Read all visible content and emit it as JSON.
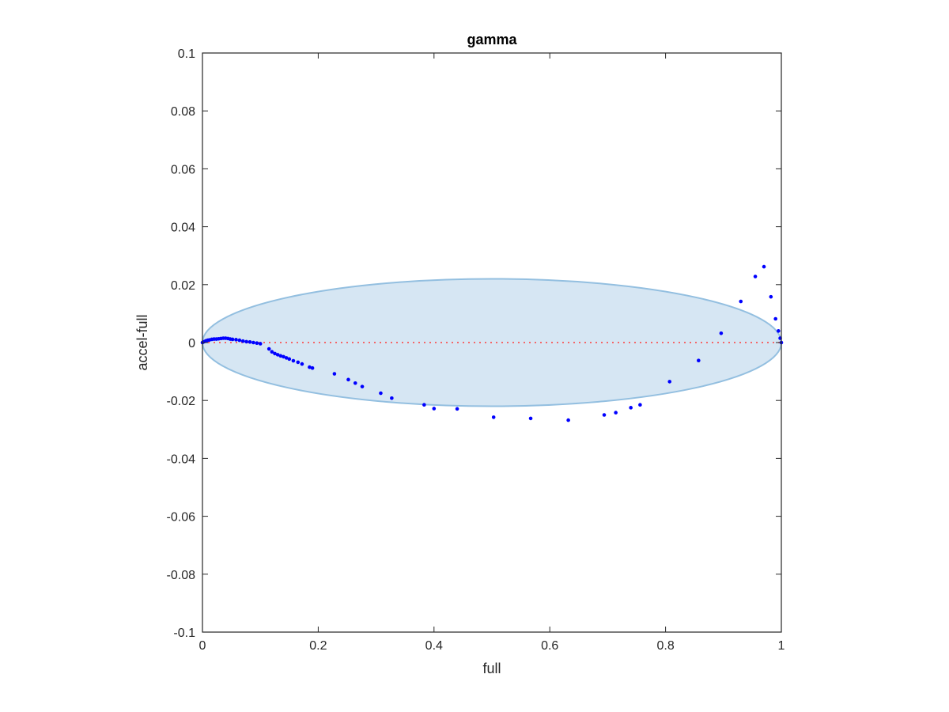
{
  "chart_data": {
    "type": "scatter",
    "title": "gamma",
    "xlabel": "full",
    "ylabel": "accel-full",
    "xlim": [
      0,
      1
    ],
    "ylim": [
      -0.1,
      0.1
    ],
    "xticks": [
      0,
      0.2,
      0.4,
      0.6,
      0.8,
      1
    ],
    "xtick_labels": [
      "0",
      "0.2",
      "0.4",
      "0.6",
      "0.8",
      "1"
    ],
    "yticks": [
      -0.1,
      -0.08,
      -0.06,
      -0.04,
      -0.02,
      0,
      0.02,
      0.04,
      0.06,
      0.08,
      0.1
    ],
    "ytick_labels": [
      "-0.1",
      "-0.08",
      "-0.06",
      "-0.04",
      "-0.02",
      "0",
      "0.02",
      "0.04",
      "0.06",
      "0.08",
      "0.1"
    ],
    "grid": false,
    "box": true,
    "reference_line": {
      "y": 0,
      "style": "dotted",
      "color": "#ff3b3b"
    },
    "ellipse": {
      "center": [
        0.5,
        0
      ],
      "semi_axes": [
        0.5,
        0.022
      ],
      "fill": "#d6e6f3",
      "stroke": "#93bfe0"
    },
    "points": {
      "color": "#0000ff",
      "x": [
        0.0,
        0.003,
        0.006,
        0.009,
        0.012,
        0.016,
        0.02,
        0.024,
        0.028,
        0.032,
        0.036,
        0.04,
        0.044,
        0.048,
        0.052,
        0.058,
        0.064,
        0.07,
        0.076,
        0.082,
        0.088,
        0.094,
        0.1,
        0.115,
        0.12,
        0.125,
        0.13,
        0.135,
        0.14,
        0.145,
        0.15,
        0.157,
        0.165,
        0.172,
        0.185,
        0.19,
        0.228,
        0.252,
        0.264,
        0.276,
        0.308,
        0.327,
        0.383,
        0.4,
        0.44,
        0.503,
        0.567,
        0.632,
        0.694,
        0.714,
        0.74,
        0.756,
        0.807,
        0.857,
        0.896,
        0.93,
        0.955,
        0.97,
        0.982,
        0.99,
        0.995,
        0.998,
        1.0
      ],
      "y": [
        0.0,
        0.0003,
        0.0006,
        0.0008,
        0.0009,
        0.0011,
        0.0012,
        0.0012,
        0.0013,
        0.0014,
        0.0015,
        0.0015,
        0.0014,
        0.0012,
        0.0011,
        0.001,
        0.0008,
        0.0005,
        0.0003,
        0.0002,
        0.0,
        -0.0002,
        -0.0004,
        -0.0022,
        -0.0032,
        -0.0038,
        -0.0042,
        -0.0046,
        -0.0049,
        -0.0053,
        -0.0057,
        -0.0063,
        -0.0068,
        -0.0074,
        -0.0085,
        -0.0088,
        -0.0108,
        -0.0128,
        -0.014,
        -0.0152,
        -0.0175,
        -0.0192,
        -0.0215,
        -0.0228,
        -0.0229,
        -0.0258,
        -0.0262,
        -0.0268,
        -0.025,
        -0.0242,
        -0.0225,
        -0.0215,
        -0.0135,
        -0.0062,
        0.0032,
        0.0142,
        0.0228,
        0.0262,
        0.0158,
        0.0082,
        0.004,
        0.0015,
        0.0
      ]
    }
  }
}
